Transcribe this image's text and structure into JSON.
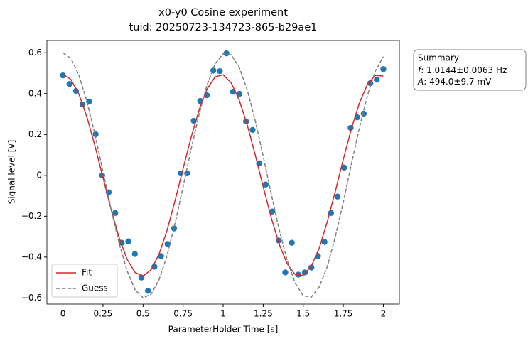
{
  "chart_data": {
    "type": "scatter",
    "title": "x0-y0 Cosine experiment",
    "subtitle": "tuid: 20250723-134723-865-b29ae1",
    "x_label": "ParameterHolder Time [s]",
    "y_label": "Signal level [V]",
    "xlim": [
      -0.1,
      2.1
    ],
    "ylim": [
      -0.63,
      0.66
    ],
    "xticks": [
      0,
      0.25,
      0.5,
      0.75,
      1,
      1.25,
      1.5,
      1.75,
      2
    ],
    "yticks": [
      {
        "value": -0.6,
        "label": "−0.6"
      },
      {
        "value": -0.4,
        "label": "−0.4"
      },
      {
        "value": -0.2,
        "label": "−0.2"
      },
      0,
      0.2,
      0.4,
      0.6
    ],
    "legend": "lower left",
    "series": [
      {
        "kind": "points",
        "color": "#1f77b4",
        "x": [
          0,
          0.0408,
          0.0816,
          0.1224,
          0.1633,
          0.2041,
          0.2449,
          0.2857,
          0.3265,
          0.3673,
          0.4082,
          0.449,
          0.4898,
          0.5306,
          0.5714,
          0.6122,
          0.6531,
          0.6939,
          0.7347,
          0.7755,
          0.8163,
          0.8571,
          0.898,
          0.9388,
          0.9796,
          1.0204,
          1.0612,
          1.102,
          1.1429,
          1.1837,
          1.2245,
          1.2653,
          1.3061,
          1.3469,
          1.3878,
          1.4286,
          1.4694,
          1.5102,
          1.551,
          1.5918,
          1.6327,
          1.6735,
          1.7143,
          1.7551,
          1.7959,
          1.8367,
          1.8776,
          1.9184,
          1.9592,
          2.0
        ],
        "values": [
          0.489,
          0.447,
          0.413,
          0.347,
          0.361,
          0.201,
          0.0,
          -0.083,
          -0.184,
          -0.33,
          -0.323,
          -0.385,
          -0.5,
          -0.565,
          -0.447,
          -0.395,
          -0.336,
          -0.26,
          0.01,
          0.01,
          0.267,
          0.364,
          0.392,
          0.513,
          0.51,
          0.597,
          0.409,
          0.399,
          0.264,
          0.222,
          0.059,
          -0.045,
          -0.177,
          -0.319,
          -0.475,
          -0.33,
          -0.486,
          -0.475,
          -0.451,
          -0.395,
          -0.326,
          -0.184,
          -0.104,
          0.038,
          0.232,
          0.284,
          0.302,
          0.451,
          0.468,
          0.52
        ]
      },
      {
        "kind": "line",
        "name": "Fit",
        "color": "#d62728",
        "dash": false,
        "x": [
          0,
          0.05,
          0.1,
          0.15,
          0.2,
          0.25,
          0.3,
          0.35,
          0.4,
          0.45,
          0.5,
          0.55,
          0.6,
          0.65,
          0.7,
          0.75,
          0.8,
          0.85,
          0.9,
          0.95,
          1.0,
          1.05,
          1.1,
          1.15,
          1.2,
          1.25,
          1.3,
          1.35,
          1.4,
          1.45,
          1.5,
          1.55,
          1.6,
          1.65,
          1.7,
          1.75,
          1.8,
          1.85,
          1.9,
          1.95,
          2.0
        ],
        "values": [
          0.494,
          0.469,
          0.397,
          0.285,
          0.144,
          -0.011,
          -0.165,
          -0.303,
          -0.41,
          -0.475,
          -0.493,
          -0.462,
          -0.386,
          -0.269,
          -0.124,
          0.033,
          0.186,
          0.321,
          0.423,
          0.482,
          0.492,
          0.453,
          0.369,
          0.248,
          0.101,
          -0.056,
          -0.207,
          -0.337,
          -0.433,
          -0.486,
          -0.489,
          -0.445,
          -0.356,
          -0.227,
          -0.079,
          0.078,
          0.226,
          0.353,
          0.444,
          0.489,
          0.486
        ]
      },
      {
        "kind": "line",
        "name": "Guess",
        "color": "#7f7f7f",
        "dash": true,
        "x": [
          0,
          0.05,
          0.1,
          0.15,
          0.2,
          0.25,
          0.3,
          0.35,
          0.4,
          0.45,
          0.5,
          0.55,
          0.6,
          0.65,
          0.7,
          0.75,
          0.8,
          0.85,
          0.9,
          0.95,
          1.0,
          1.05,
          1.1,
          1.15,
          1.2,
          1.25,
          1.3,
          1.35,
          1.4,
          1.45,
          1.5,
          1.55,
          1.6,
          1.65,
          1.7,
          1.75,
          1.8,
          1.85,
          1.9,
          1.95,
          2.0
        ],
        "values": [
          0.6,
          0.572,
          0.49,
          0.361,
          0.2,
          0.019,
          -0.164,
          -0.33,
          -0.466,
          -0.559,
          -0.599,
          -0.582,
          -0.511,
          -0.392,
          -0.235,
          -0.056,
          0.127,
          0.299,
          0.443,
          0.546,
          0.595,
          0.59,
          0.529,
          0.419,
          0.269,
          0.094,
          -0.09,
          -0.266,
          -0.416,
          -0.528,
          -0.589,
          -0.596,
          -0.546,
          -0.447,
          -0.301,
          -0.132,
          0.053,
          0.231,
          0.389,
          0.51,
          0.581
        ]
      }
    ],
    "summary": {
      "heading": "Summary",
      "lines": [
        {
          "symbol": "f",
          "text": ": 1.0144±0.0063 Hz"
        },
        {
          "symbol": "A",
          "text": ": 494.0±9.7 mV"
        }
      ]
    }
  }
}
